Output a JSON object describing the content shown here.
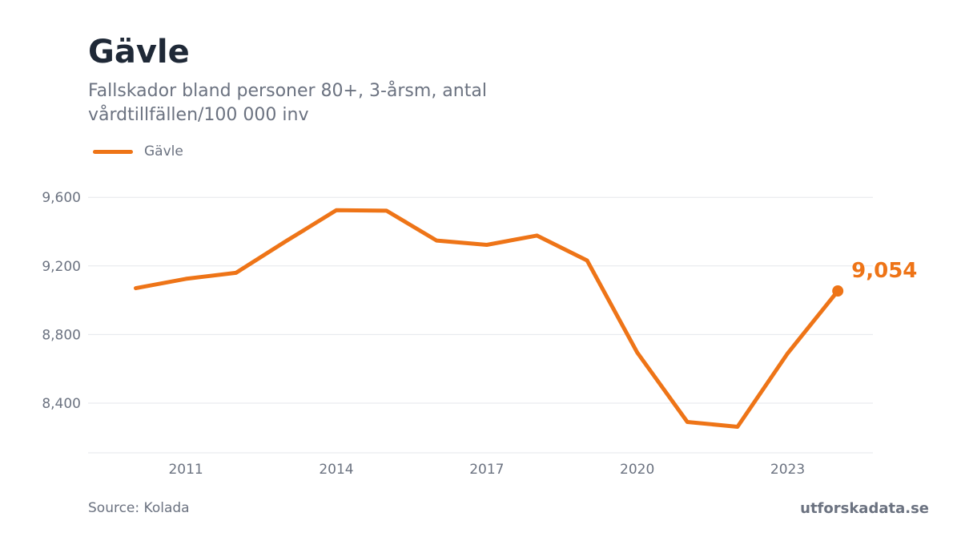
{
  "header": {
    "title": "Gävle",
    "subtitle": "Fallskador bland personer 80+, 3-årsm, antal vårdtillfällen/100 000 inv"
  },
  "legend": {
    "label": "Gävle"
  },
  "footer": {
    "source": "Source: Kolada",
    "brand": "utforskadata.se"
  },
  "colors": {
    "line": "#ee7417",
    "grid": "#e5e7eb",
    "axis_text": "#6b7280"
  },
  "chart_data": {
    "type": "line",
    "title": "Gävle",
    "subtitle": "Fallskador bland personer 80+, 3-årsm, antal vårdtillfällen/100 000 inv",
    "xlabel": "",
    "ylabel": "",
    "x": [
      2010,
      2011,
      2012,
      2013,
      2014,
      2015,
      2016,
      2017,
      2018,
      2019,
      2020,
      2021,
      2022,
      2023,
      2024
    ],
    "series": [
      {
        "name": "Gävle",
        "values": [
          9070,
          9125,
          9160,
          9345,
          9525,
          9522,
          9348,
          9323,
          9377,
          9232,
          8695,
          8290,
          8262,
          8690,
          9054
        ]
      }
    ],
    "last_value_label": "9,054",
    "x_ticks": [
      2011,
      2014,
      2017,
      2020,
      2023
    ],
    "x_tick_labels": [
      "2011",
      "2014",
      "2017",
      "2020",
      "2023"
    ],
    "y_ticks": [
      8400,
      8800,
      9200,
      9600
    ],
    "y_tick_labels": [
      "8,400",
      "8,800",
      "9,200",
      "9,600"
    ],
    "xlim": [
      2009.05,
      2024.7
    ],
    "ylim": [
      8110,
      9760
    ],
    "grid": true,
    "legend_position": "top-left"
  }
}
